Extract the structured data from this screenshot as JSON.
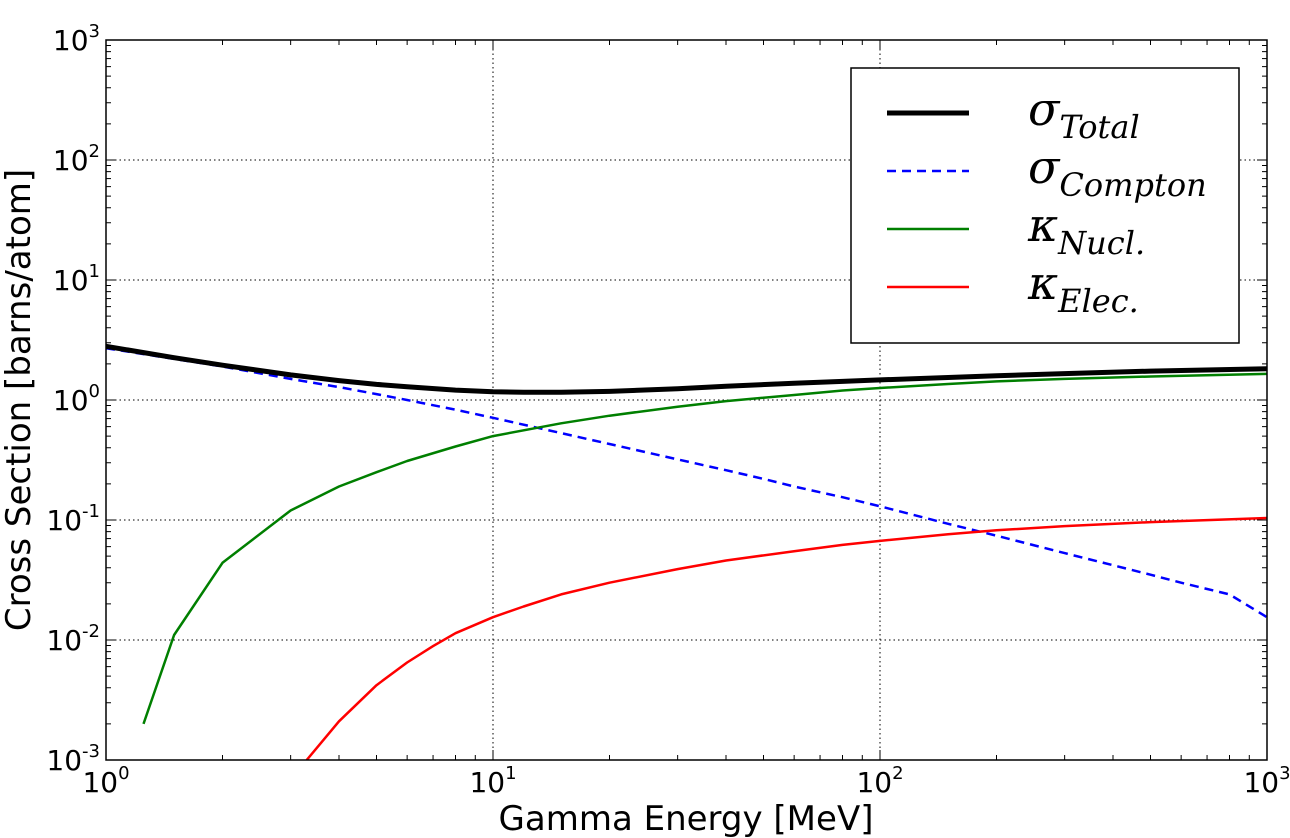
{
  "chart_data": {
    "type": "line",
    "xlabel": "Gamma Energy [MeV]",
    "ylabel": "Cross Section [barns/atom]",
    "xscale": "log",
    "yscale": "log",
    "xlim": [
      1,
      1000
    ],
    "ylim": [
      0.001,
      1000
    ],
    "grid": true,
    "legend_position": "top-right",
    "xticks": [
      {
        "value": 1,
        "base": "10",
        "exp": "0"
      },
      {
        "value": 10,
        "base": "10",
        "exp": "1"
      },
      {
        "value": 100,
        "base": "10",
        "exp": "2"
      },
      {
        "value": 1000,
        "base": "10",
        "exp": "3"
      }
    ],
    "yticks": [
      {
        "value": 0.001,
        "base": "10",
        "exp": "-3"
      },
      {
        "value": 0.01,
        "base": "10",
        "exp": "-2"
      },
      {
        "value": 0.1,
        "base": "10",
        "exp": "-1"
      },
      {
        "value": 1,
        "base": "10",
        "exp": "0"
      },
      {
        "value": 10,
        "base": "10",
        "exp": "1"
      },
      {
        "value": 100,
        "base": "10",
        "exp": "2"
      },
      {
        "value": 1000,
        "base": "10",
        "exp": "3"
      }
    ],
    "series": [
      {
        "name": "Total",
        "symbol": "σ",
        "subscript": "Total",
        "color": "#000000",
        "dash": "solid",
        "width": 5,
        "x": [
          1,
          1.5,
          2,
          3,
          4,
          5,
          6,
          8,
          10,
          12,
          15,
          20,
          30,
          40,
          60,
          80,
          100,
          150,
          200,
          300,
          500,
          1000
        ],
        "y": [
          2.8,
          2.25,
          1.95,
          1.62,
          1.45,
          1.35,
          1.29,
          1.21,
          1.17,
          1.16,
          1.16,
          1.18,
          1.24,
          1.3,
          1.38,
          1.43,
          1.47,
          1.54,
          1.59,
          1.66,
          1.74,
          1.82
        ]
      },
      {
        "name": "Compton",
        "symbol": "σ",
        "subscript": "Compton",
        "color": "#0000ff",
        "dash": "dashed",
        "width": 2.5,
        "x": [
          1,
          1.5,
          2,
          3,
          4,
          5,
          6,
          8,
          10,
          15,
          20,
          30,
          40,
          50,
          60,
          80,
          100,
          150,
          200,
          300,
          400,
          500,
          600,
          800,
          1000
        ],
        "y": [
          2.7,
          2.2,
          1.9,
          1.5,
          1.28,
          1.12,
          1.0,
          0.83,
          0.71,
          0.53,
          0.43,
          0.32,
          0.26,
          0.22,
          0.19,
          0.155,
          0.13,
          0.093,
          0.074,
          0.053,
          0.042,
          0.035,
          0.03,
          0.024,
          0.0155
        ]
      },
      {
        "name": "Nucl.",
        "symbol": "κ",
        "subscript": "Nucl.",
        "color": "#007f00",
        "dash": "solid",
        "width": 2.5,
        "x": [
          1.25,
          1.5,
          2,
          3,
          4,
          5,
          6,
          8,
          10,
          15,
          20,
          30,
          40,
          60,
          80,
          100,
          150,
          200,
          300,
          500,
          1000
        ],
        "y": [
          0.002,
          0.011,
          0.044,
          0.12,
          0.19,
          0.25,
          0.31,
          0.41,
          0.5,
          0.64,
          0.74,
          0.88,
          0.98,
          1.1,
          1.2,
          1.26,
          1.36,
          1.43,
          1.5,
          1.57,
          1.65
        ]
      },
      {
        "name": "Elec.",
        "symbol": "κ",
        "subscript": "Elec.",
        "color": "#ff0000",
        "dash": "solid",
        "width": 2.5,
        "x": [
          3.3,
          4,
          5,
          6,
          7,
          8,
          10,
          12,
          15,
          20,
          30,
          40,
          60,
          80,
          100,
          150,
          200,
          300,
          500,
          1000
        ],
        "y": [
          0.001,
          0.0021,
          0.0042,
          0.0065,
          0.0089,
          0.0114,
          0.0155,
          0.019,
          0.024,
          0.03,
          0.039,
          0.046,
          0.055,
          0.062,
          0.067,
          0.076,
          0.082,
          0.089,
          0.096,
          0.104
        ]
      }
    ]
  }
}
